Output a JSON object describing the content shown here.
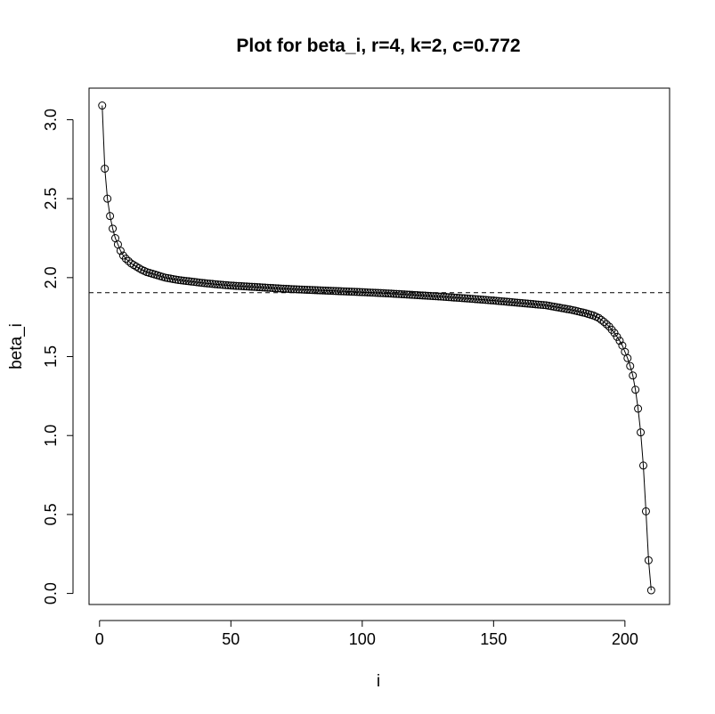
{
  "chart_data": {
    "type": "scatter",
    "title": "Plot for beta_i, r=4, k=2, c=0.772",
    "xlabel": "i",
    "ylabel": "beta_i",
    "xlim": [
      -4,
      217
    ],
    "ylim": [
      -0.07,
      3.2
    ],
    "xticks": [
      0,
      50,
      100,
      150,
      200
    ],
    "yticks": [
      0.0,
      0.5,
      1.0,
      1.5,
      2.0,
      2.5,
      3.0
    ],
    "xtick_labels": [
      "0",
      "50",
      "100",
      "150",
      "200"
    ],
    "ytick_labels": [
      "0.0",
      "0.5",
      "1.0",
      "1.5",
      "2.0",
      "2.5",
      "3.0"
    ],
    "reference_line": {
      "y": 1.905,
      "style": "dashed"
    },
    "series": [
      {
        "marker": "open-circle",
        "connected": true,
        "n": 209,
        "points": [
          [
            1,
            3.09
          ],
          [
            2,
            2.69
          ],
          [
            3,
            2.5
          ],
          [
            4,
            2.39
          ],
          [
            5,
            2.31
          ],
          [
            6,
            2.25
          ],
          [
            7,
            2.21
          ],
          [
            8,
            2.17
          ],
          [
            9,
            2.14
          ],
          [
            10,
            2.12
          ],
          [
            12,
            2.09
          ],
          [
            14,
            2.07
          ],
          [
            16,
            2.05
          ],
          [
            18,
            2.035
          ],
          [
            20,
            2.025
          ],
          [
            25,
            2.0
          ],
          [
            30,
            1.985
          ],
          [
            35,
            1.975
          ],
          [
            40,
            1.965
          ],
          [
            45,
            1.957
          ],
          [
            50,
            1.95
          ],
          [
            60,
            1.94
          ],
          [
            70,
            1.93
          ],
          [
            80,
            1.922
          ],
          [
            90,
            1.915
          ],
          [
            100,
            1.908
          ],
          [
            110,
            1.9
          ],
          [
            120,
            1.89
          ],
          [
            130,
            1.88
          ],
          [
            140,
            1.868
          ],
          [
            150,
            1.855
          ],
          [
            160,
            1.84
          ],
          [
            170,
            1.825
          ],
          [
            175,
            1.81
          ],
          [
            180,
            1.795
          ],
          [
            185,
            1.775
          ],
          [
            188,
            1.76
          ],
          [
            190,
            1.745
          ],
          [
            192,
            1.72
          ],
          [
            194,
            1.69
          ],
          [
            196,
            1.65
          ],
          [
            198,
            1.6
          ],
          [
            199,
            1.57
          ],
          [
            200,
            1.53
          ],
          [
            201,
            1.49
          ],
          [
            202,
            1.44
          ],
          [
            203,
            1.38
          ],
          [
            204,
            1.29
          ],
          [
            205,
            1.17
          ],
          [
            206,
            1.02
          ],
          [
            207,
            0.81
          ],
          [
            208,
            0.52
          ],
          [
            209,
            0.21
          ],
          [
            210,
            0.02
          ]
        ]
      }
    ]
  }
}
